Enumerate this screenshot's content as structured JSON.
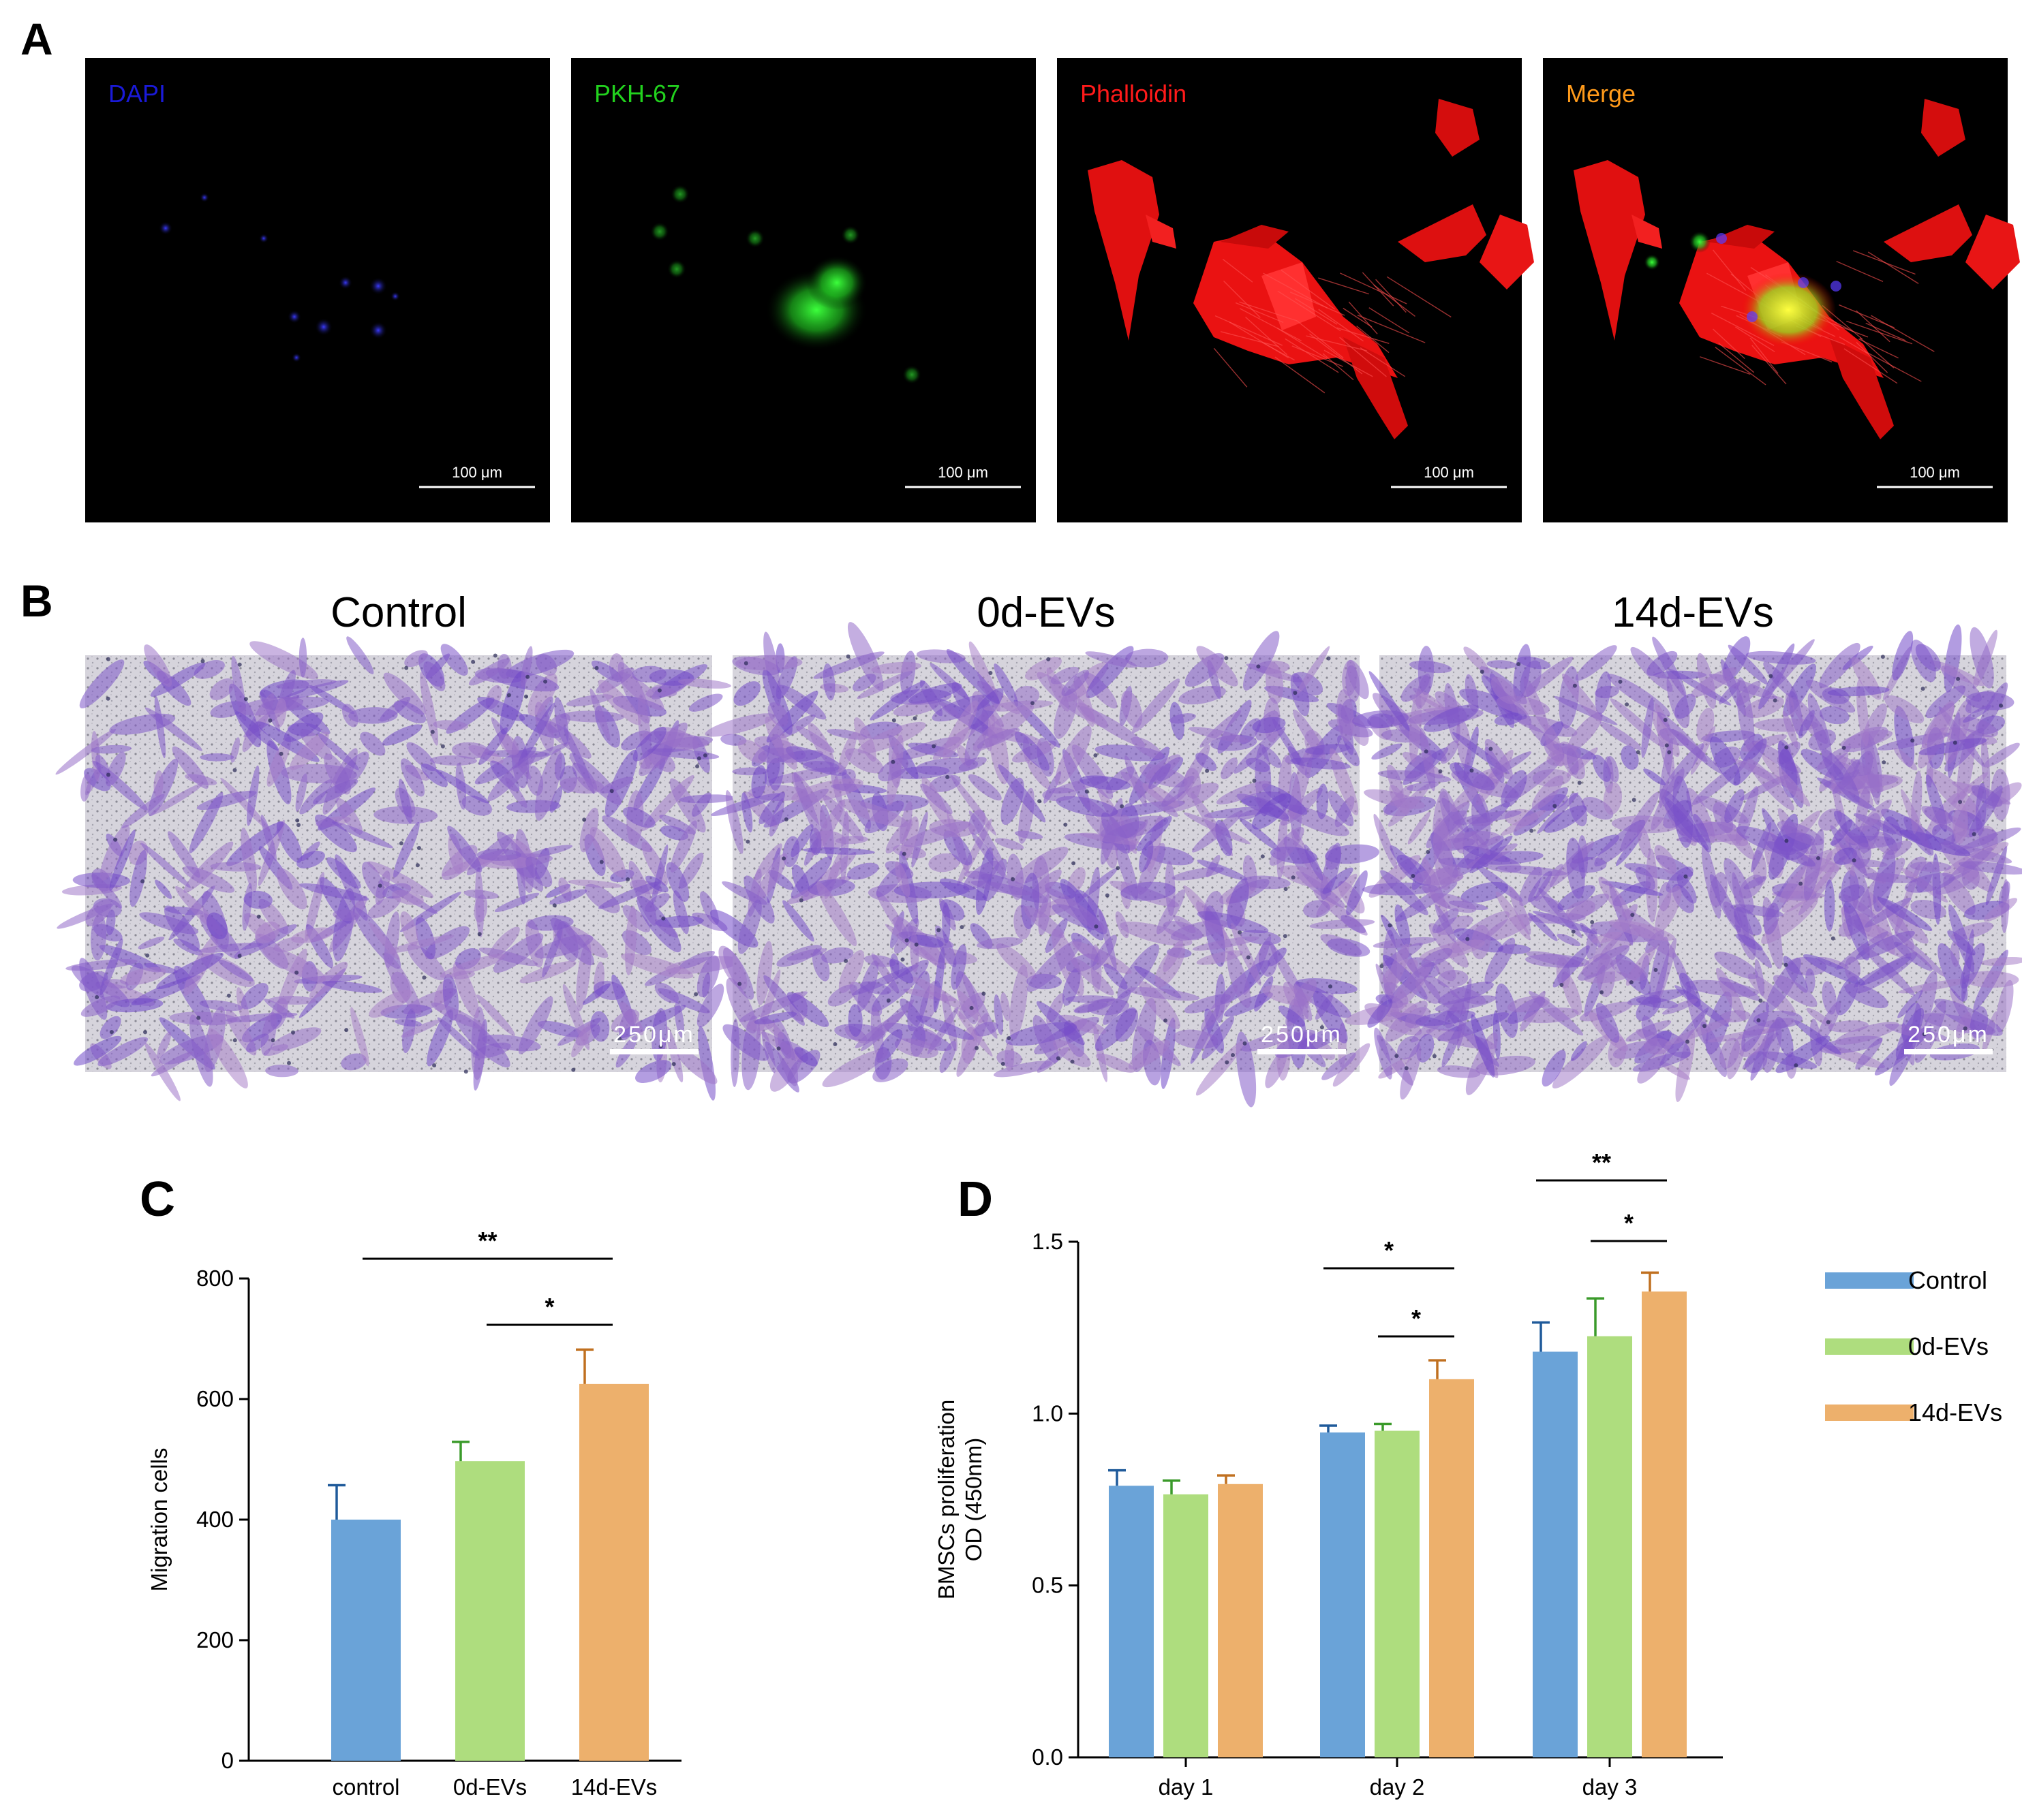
{
  "panel_labels": {
    "a": "A",
    "b": "B",
    "c": "C",
    "d": "D"
  },
  "panel_a": {
    "images": [
      {
        "channel": "DAPI",
        "label": "DAPI",
        "label_color": "#1a1ad8",
        "scale_bar": "100 μm",
        "content": "blue-nuclei"
      },
      {
        "channel": "PKH-67",
        "label": "PKH-67",
        "label_color": "#22d21e",
        "scale_bar": "100 μm",
        "content": "green-evs"
      },
      {
        "channel": "Phalloidin",
        "label": "Phalloidin",
        "label_color": "#ff1a1a",
        "scale_bar": "100 μm",
        "content": "red-actin"
      },
      {
        "channel": "Merge",
        "label": "Merge",
        "label_color": "#ff9a1a",
        "scale_bar": "100 μm",
        "content": "merge"
      }
    ]
  },
  "panel_b": {
    "images": [
      {
        "title": "Control",
        "scale_bar": "250μm",
        "density": 0.45
      },
      {
        "title": "0d-EVs",
        "scale_bar": "250μm",
        "density": 0.7
      },
      {
        "title": "14d-EVs",
        "scale_bar": "250μm",
        "density": 0.9
      }
    ]
  },
  "chart_data": [
    {
      "panel": "C",
      "type": "bar",
      "categories": [
        "control",
        "0d-EVs",
        "14d-EVs"
      ],
      "values": [
        400,
        497,
        625
      ],
      "errors": [
        57,
        32,
        57
      ],
      "colors": [
        "#6aa3d8",
        "#aedd7e",
        "#edb06c"
      ],
      "error_colors": [
        "#1f5a9a",
        "#3a9a2a",
        "#c07020"
      ],
      "ylabel": "Migration cells",
      "xlabel": "",
      "ylim": [
        0,
        800
      ],
      "yticks": [
        "0",
        "200",
        "400",
        "600",
        "800"
      ],
      "significance": [
        {
          "from": "control",
          "to": "14d-EVs",
          "label": "**"
        },
        {
          "from": "0d-EVs",
          "to": "14d-EVs",
          "label": "*"
        }
      ]
    },
    {
      "panel": "D",
      "type": "bar",
      "categories": [
        "day 1",
        "day 2",
        "day 3"
      ],
      "series": [
        {
          "name": "Control",
          "color": "#6aa3d8",
          "error_color": "#1f5a9a",
          "values": [
            0.79,
            0.945,
            1.18
          ],
          "errors": [
            0.045,
            0.02,
            0.085
          ]
        },
        {
          "name": "0d-EVs",
          "color": "#aedd7e",
          "error_color": "#3a9a2a",
          "values": [
            0.765,
            0.95,
            1.225
          ],
          "errors": [
            0.04,
            0.02,
            0.11
          ]
        },
        {
          "name": "14d-EVs",
          "color": "#edb06c",
          "error_color": "#c07020",
          "values": [
            0.795,
            1.1,
            1.355
          ],
          "errors": [
            0.025,
            0.055,
            0.055
          ]
        }
      ],
      "ylabel_lines": [
        "BMSCs proliferation",
        "OD (450nm)"
      ],
      "ylim": [
        0,
        1.5
      ],
      "yticks": [
        "0.0",
        "0.5",
        "1.0",
        "1.5"
      ],
      "legend_position": "right",
      "significance": [
        {
          "category": "day 2",
          "from_series": 0,
          "to_series": 2,
          "label": "*"
        },
        {
          "category": "day 2",
          "from_series": 1,
          "to_series": 2,
          "label": "*"
        },
        {
          "category": "day 3",
          "from_series": 0,
          "to_series": 2,
          "label": "**"
        },
        {
          "category": "day 3",
          "from_series": 1,
          "to_series": 2,
          "label": "*"
        }
      ]
    }
  ]
}
